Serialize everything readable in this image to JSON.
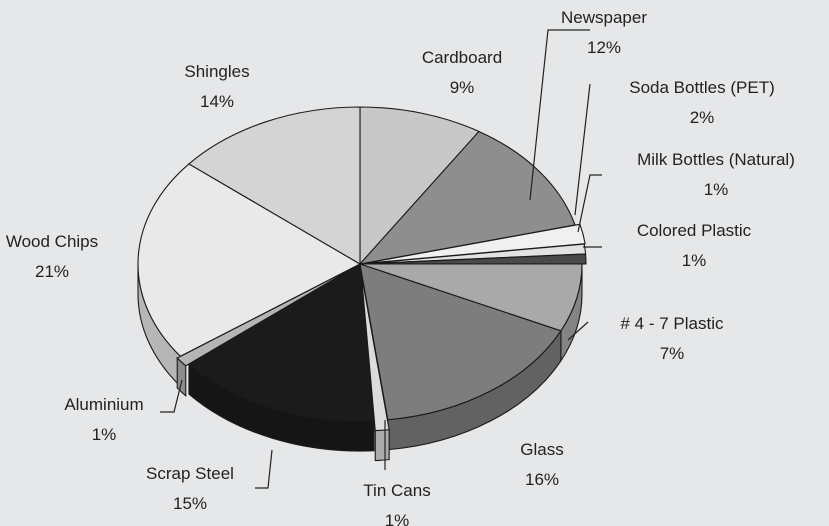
{
  "chart_data": {
    "type": "pie",
    "style": "3d-exploded",
    "slices": [
      {
        "category": "Cardboard",
        "value": 9,
        "pct_label": "9%",
        "color": "#c8c8c8"
      },
      {
        "category": "Newspaper",
        "value": 12,
        "pct_label": "12%",
        "color": "#8e8e8e"
      },
      {
        "category": "Soda Bottles (PET)",
        "value": 2,
        "pct_label": "2%",
        "color": "#f0f0f0"
      },
      {
        "category": "Milk Bottles (Natural)",
        "value": 1,
        "pct_label": "1%",
        "color": "#e2e2e2"
      },
      {
        "category": "Colored Plastic",
        "value": 1,
        "pct_label": "1%",
        "color": "#4a4a4a"
      },
      {
        "category": "# 4 - 7 Plastic",
        "value": 7,
        "pct_label": "7%",
        "color": "#a9a9a9"
      },
      {
        "category": "Glass",
        "value": 16,
        "pct_label": "16%",
        "color": "#7d7d7d"
      },
      {
        "category": "Tin Cans",
        "value": 1,
        "pct_label": "1%",
        "color": "#dcdcdc"
      },
      {
        "category": "Scrap Steel",
        "value": 15,
        "pct_label": "15%",
        "color": "#1b1b1b"
      },
      {
        "category": "Aluminium",
        "value": 1,
        "pct_label": "1%",
        "color": "#b5b5b5"
      },
      {
        "category": "Wood Chips",
        "value": 21,
        "pct_label": "21%",
        "color": "#e9e9e9"
      },
      {
        "category": "Shingles",
        "value": 14,
        "pct_label": "14%",
        "color": "#d4d4d4"
      }
    ]
  }
}
